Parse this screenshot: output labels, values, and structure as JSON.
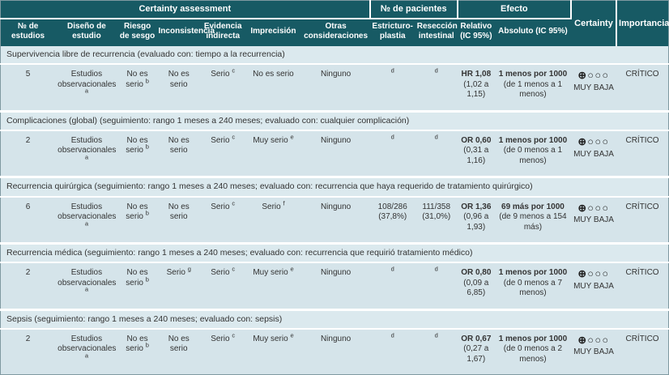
{
  "colors": {
    "header_bg": "#175A64",
    "header_text": "#ffffff",
    "section_row_bg": "#dbe9ee",
    "data_row_bg": "#d5e4ea",
    "body_text": "#333333",
    "separator": "#ffffff"
  },
  "header": {
    "groups": [
      {
        "label": "Certainty assessment",
        "colspan": 7
      },
      {
        "label": "№ de pacientes",
        "colspan": 2
      },
      {
        "label": "Efecto",
        "colspan": 2
      }
    ],
    "certainty_label": "Certainty",
    "importancia_label": "Importancia",
    "columns": [
      "№ de estudios",
      "Diseño de estudio",
      "Riesgo de sesgo",
      "Inconsistencia",
      "Evidencia indirecta",
      "Imprecisión",
      "Otras consideraciones",
      "Estricturo-plastia",
      "Resección intestinal",
      "Relativo (IC 95%)",
      "Absoluto (IC 95%)"
    ]
  },
  "sections": [
    {
      "title": "Supervivencia libre de recurrencia (evaluado con: tiempo a la recurrencia)",
      "row": {
        "n_estudios": "5",
        "diseno": {
          "text": "Estudios observacionales",
          "sup": "a"
        },
        "riesgo_sesgo": {
          "text": "No es serio",
          "sup": "b"
        },
        "inconsistencia": {
          "text": "No es serio",
          "sup": ""
        },
        "evidencia_indirecta": {
          "text": "Serio",
          "sup": "c"
        },
        "imprecision": {
          "text": "No es serio",
          "sup": ""
        },
        "otras_consideraciones": {
          "text": "Ninguno",
          "sup": ""
        },
        "estricturoplastia": {
          "text": "",
          "sup": "d"
        },
        "reseccion_intestinal": {
          "text": "",
          "sup": "d"
        },
        "relativo": {
          "bold": "HR 1,08",
          "rest": "(1,02 a 1,15)"
        },
        "absoluto": {
          "bold": "1 menos por 1000",
          "rest": "(de 1 menos a 1 menos)"
        },
        "certainty": {
          "symbols": "⊕○○○",
          "label": "MUY BAJA"
        },
        "importancia": "CRÍTICO"
      }
    },
    {
      "title": "Complicaciones (global) (seguimiento: rango 1 meses a 240 meses; evaluado con: cualquier complicación)",
      "row": {
        "n_estudios": "2",
        "diseno": {
          "text": "Estudios observacionales",
          "sup": "a"
        },
        "riesgo_sesgo": {
          "text": "No es serio",
          "sup": "b"
        },
        "inconsistencia": {
          "text": "No es serio",
          "sup": ""
        },
        "evidencia_indirecta": {
          "text": "Serio",
          "sup": "c"
        },
        "imprecision": {
          "text": "Muy serio",
          "sup": "e"
        },
        "otras_consideraciones": {
          "text": "Ninguno",
          "sup": ""
        },
        "estricturoplastia": {
          "text": "",
          "sup": "d"
        },
        "reseccion_intestinal": {
          "text": "",
          "sup": "d"
        },
        "relativo": {
          "bold": "OR 0,60",
          "rest": "(0,31 a 1,16)"
        },
        "absoluto": {
          "bold": "1 menos por 1000",
          "rest": "(de 0 menos a 1 menos)"
        },
        "certainty": {
          "symbols": "⊕○○○",
          "label": "MUY BAJA"
        },
        "importancia": "CRÍTICO"
      }
    },
    {
      "title": "Recurrencia quirúrgica (seguimiento: rango 1 meses a 240 meses; evaluado con: recurrencia que haya requerido de tratamiento quirúrgico)",
      "row": {
        "n_estudios": "6",
        "diseno": {
          "text": "Estudios observacionales",
          "sup": "a"
        },
        "riesgo_sesgo": {
          "text": "No es serio",
          "sup": "b"
        },
        "inconsistencia": {
          "text": "No es serio",
          "sup": ""
        },
        "evidencia_indirecta": {
          "text": "Serio",
          "sup": "c"
        },
        "imprecision": {
          "text": "Serio",
          "sup": "f"
        },
        "otras_consideraciones": {
          "text": "Ninguno",
          "sup": ""
        },
        "estricturoplastia": {
          "text": "108/286 (37,8%)",
          "sup": ""
        },
        "reseccion_intestinal": {
          "text": "111/358 (31,0%)",
          "sup": ""
        },
        "relativo": {
          "bold": "OR 1,36",
          "rest": "(0,96 a 1,93)"
        },
        "absoluto": {
          "bold": "69 más por 1000",
          "rest": "(de 9 menos a 154 más)"
        },
        "certainty": {
          "symbols": "⊕○○○",
          "label": "MUY BAJA"
        },
        "importancia": "CRÍTICO"
      }
    },
    {
      "title": "Recurrencia médica (seguimiento: rango 1 meses a 240 meses; evaluado con: recurrencia que requirió tratamiento médico)",
      "row": {
        "n_estudios": "2",
        "diseno": {
          "text": "Estudios observacionales",
          "sup": "a"
        },
        "riesgo_sesgo": {
          "text": "No es serio",
          "sup": "b"
        },
        "inconsistencia": {
          "text": "Serio",
          "sup": "g"
        },
        "evidencia_indirecta": {
          "text": "Serio",
          "sup": "c"
        },
        "imprecision": {
          "text": "Muy serio",
          "sup": "e"
        },
        "otras_consideraciones": {
          "text": "Ninguno",
          "sup": ""
        },
        "estricturoplastia": {
          "text": "",
          "sup": "d"
        },
        "reseccion_intestinal": {
          "text": "",
          "sup": "d"
        },
        "relativo": {
          "bold": "OR 0,80",
          "rest": "(0,09 a 6,85)"
        },
        "absoluto": {
          "bold": "1 menos por 1000",
          "rest": "(de 0 menos a 7 menos)"
        },
        "certainty": {
          "symbols": "⊕○○○",
          "label": "MUY BAJA"
        },
        "importancia": "CRÍTICO"
      }
    },
    {
      "title": "Sepsis (seguimiento: rango 1 meses a 240 meses; evaluado con: sepsis)",
      "row": {
        "n_estudios": "2",
        "diseno": {
          "text": "Estudios observacionales",
          "sup": "a"
        },
        "riesgo_sesgo": {
          "text": "No es serio",
          "sup": "b"
        },
        "inconsistencia": {
          "text": "No es serio",
          "sup": ""
        },
        "evidencia_indirecta": {
          "text": "Serio",
          "sup": "c"
        },
        "imprecision": {
          "text": "Muy serio",
          "sup": "e"
        },
        "otras_consideraciones": {
          "text": "Ninguno",
          "sup": ""
        },
        "estricturoplastia": {
          "text": "",
          "sup": "d"
        },
        "reseccion_intestinal": {
          "text": "",
          "sup": "d"
        },
        "relativo": {
          "bold": "OR 0,67",
          "rest": "(0,27 a 1,67)"
        },
        "absoluto": {
          "bold": "1 menos por 1000",
          "rest": "(de 0 menos a 2 menos)"
        },
        "certainty": {
          "symbols": "⊕○○○",
          "label": "MUY BAJA"
        },
        "importancia": "CRÍTICO"
      }
    }
  ]
}
